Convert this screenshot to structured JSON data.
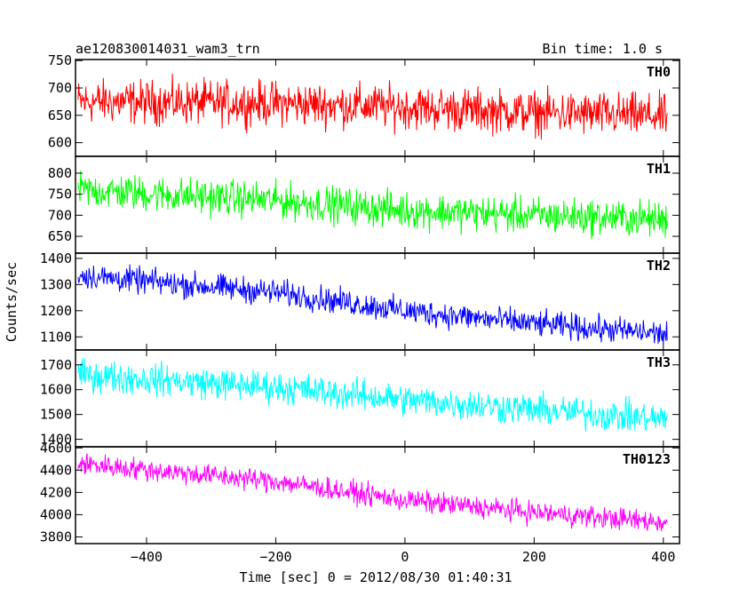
{
  "chart_data": {
    "type": "line",
    "title": "ae120830014031_wam3_trn",
    "subtitle": "Bin time: 1.0 s",
    "xlabel": "Time [sec] 0 = 2012/08/30 01:40:31",
    "ylabel": "Counts/sec",
    "x_range": [
      -506,
      406
    ],
    "xlim": [
      -510,
      425
    ],
    "x_ticks": [
      -400,
      -200,
      0,
      200,
      400
    ],
    "x_tick_labels": [
      "−400",
      "−200",
      "0",
      "200",
      "400"
    ],
    "grid": false,
    "panels": [
      {
        "name": "TH0",
        "color": "#ff0000",
        "ylim": [
          575,
          752
        ],
        "y_ticks": [
          600,
          650,
          700,
          750
        ],
        "y_tick_labels": [
          "600",
          "650",
          "700",
          "750"
        ],
        "trend": [
          [
            -506,
            675
          ],
          [
            -200,
            672
          ],
          [
            0,
            665
          ],
          [
            200,
            655
          ],
          [
            406,
            648
          ]
        ],
        "noise_amplitude": 28
      },
      {
        "name": "TH1",
        "color": "#00ff00",
        "ylim": [
          610,
          840
        ],
        "y_ticks": [
          650,
          700,
          750,
          800
        ],
        "y_tick_labels": [
          "650",
          "700",
          "750",
          "800"
        ],
        "trend": [
          [
            -506,
            760
          ],
          [
            -200,
            735
          ],
          [
            0,
            712
          ],
          [
            200,
            700
          ],
          [
            406,
            690
          ]
        ],
        "noise_amplitude": 30
      },
      {
        "name": "TH2",
        "color": "#0000ff",
        "ylim": [
          1050,
          1420
        ],
        "y_ticks": [
          1100,
          1200,
          1300,
          1400
        ],
        "y_tick_labels": [
          "1100",
          "1200",
          "1300",
          "1400"
        ],
        "trend": [
          [
            -506,
            1335
          ],
          [
            -200,
            1270
          ],
          [
            0,
            1200
          ],
          [
            200,
            1150
          ],
          [
            406,
            1110
          ]
        ],
        "noise_amplitude": 35
      },
      {
        "name": "TH3",
        "color": "#00ffff",
        "ylim": [
          1370,
          1760
        ],
        "y_ticks": [
          1400,
          1500,
          1600,
          1700
        ],
        "y_tick_labels": [
          "1400",
          "1500",
          "1600",
          "1700"
        ],
        "trend": [
          [
            -506,
            1660
          ],
          [
            -200,
            1610
          ],
          [
            0,
            1560
          ],
          [
            200,
            1520
          ],
          [
            406,
            1480
          ]
        ],
        "noise_amplitude": 45
      },
      {
        "name": "TH0123",
        "color": "#ff00ff",
        "ylim": [
          3740,
          4610
        ],
        "y_ticks": [
          3800,
          4000,
          4200,
          4400,
          4600
        ],
        "y_tick_labels": [
          "3800",
          "4000",
          "4200",
          "4400",
          "4600"
        ],
        "trend": [
          [
            -506,
            4460
          ],
          [
            -200,
            4300
          ],
          [
            0,
            4130
          ],
          [
            200,
            4020
          ],
          [
            406,
            3930
          ]
        ],
        "noise_amplitude": 70
      }
    ]
  }
}
